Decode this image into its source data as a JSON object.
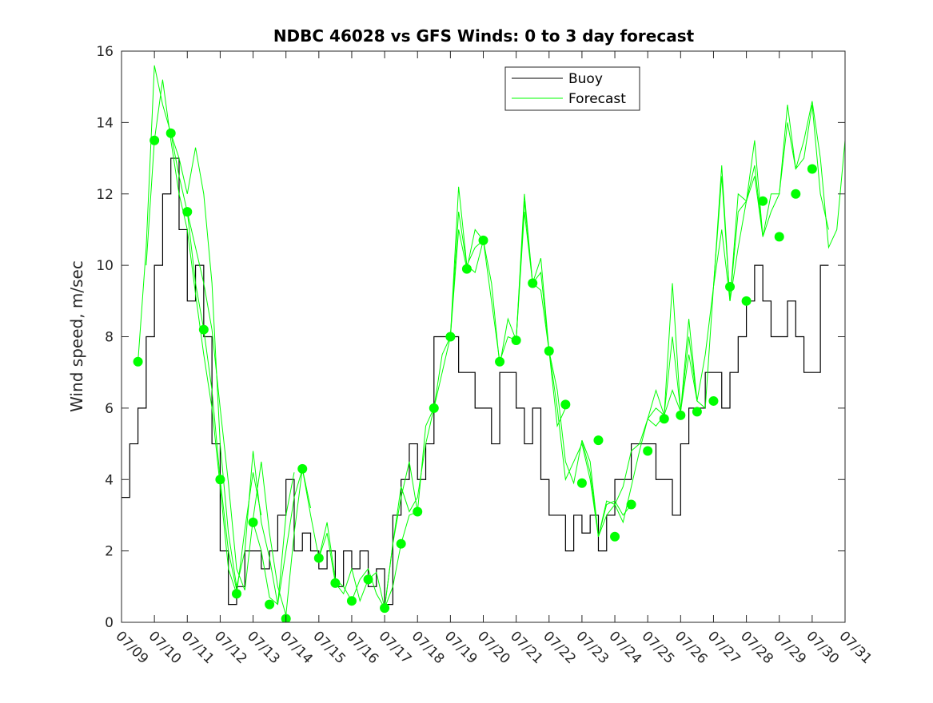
{
  "chart_data": {
    "type": "line",
    "title": "NDBC 46028 vs GFS Winds: 0 to 3 day forecast",
    "xlabel": "",
    "ylabel": "Wind speed, m/sec",
    "xlim": [
      9,
      31
    ],
    "ylim": [
      0,
      16
    ],
    "x_unit": "day of July",
    "x_ticks": [
      9,
      10,
      11,
      12,
      13,
      14,
      15,
      16,
      17,
      18,
      19,
      20,
      21,
      22,
      23,
      24,
      25,
      26,
      27,
      28,
      29,
      30,
      31
    ],
    "x_tick_labels": [
      "07/09",
      "07/10",
      "07/11",
      "07/12",
      "07/13",
      "07/14",
      "07/15",
      "07/16",
      "07/17",
      "07/18",
      "07/19",
      "07/20",
      "07/21",
      "07/22",
      "07/23",
      "07/24",
      "07/25",
      "07/26",
      "07/27",
      "07/28",
      "07/29",
      "07/30",
      "07/31"
    ],
    "y_ticks": [
      0,
      2,
      4,
      6,
      8,
      10,
      12,
      14,
      16
    ],
    "y_tick_labels": [
      "0",
      "2",
      "4",
      "6",
      "8",
      "10",
      "12",
      "14",
      "16"
    ],
    "grid": false,
    "legend": {
      "position": "top-right",
      "entries": [
        "Buoy",
        "Forecast"
      ]
    },
    "series": [
      {
        "name": "Buoy",
        "color": "#000000",
        "style": "step",
        "x": [
          9.0,
          9.25,
          9.5,
          9.75,
          10.0,
          10.25,
          10.5,
          10.75,
          11.0,
          11.25,
          11.5,
          11.75,
          12.0,
          12.25,
          12.5,
          12.75,
          13.0,
          13.25,
          13.5,
          13.75,
          14.0,
          14.25,
          14.5,
          14.75,
          15.0,
          15.25,
          15.5,
          15.75,
          16.0,
          16.25,
          16.5,
          16.75,
          17.0,
          17.25,
          17.5,
          17.75,
          18.0,
          18.25,
          18.5,
          18.75,
          19.0,
          19.25,
          19.5,
          19.75,
          20.0,
          20.25,
          20.5,
          20.75,
          21.0,
          21.25,
          21.5,
          21.75,
          22.0,
          22.25,
          22.5,
          22.75,
          23.0,
          23.25,
          23.5,
          23.75,
          24.0,
          24.25,
          24.5,
          24.75,
          25.0,
          25.25,
          25.5,
          25.75,
          26.0,
          26.25,
          26.5,
          26.75,
          27.0,
          27.25,
          27.5,
          27.75,
          28.0,
          28.25,
          28.5,
          28.75,
          29.0,
          29.25,
          29.5,
          29.75,
          30.0,
          30.25
        ],
        "values": [
          3.5,
          5,
          6,
          8,
          10,
          12,
          13,
          11,
          9,
          10,
          8,
          5,
          2,
          0.5,
          1,
          2,
          2,
          1.5,
          2,
          3,
          4,
          2,
          2.5,
          2,
          1.5,
          2,
          1,
          2,
          1.5,
          2,
          1,
          1.5,
          0.5,
          3,
          4,
          5,
          4,
          5,
          8,
          8,
          8,
          7,
          7,
          6,
          6,
          5,
          7,
          7,
          6,
          5,
          6,
          4,
          3,
          3,
          2,
          3,
          2.5,
          3,
          2,
          3,
          4,
          4,
          5,
          5,
          5,
          4,
          4,
          3,
          5,
          6,
          6,
          7,
          7,
          6,
          7,
          8,
          9,
          10,
          9,
          8,
          8,
          9,
          8,
          7,
          7,
          10
        ]
      },
      {
        "name": "Forecast",
        "color": "#00ff00",
        "x": [
          9.0,
          9.25,
          9.5,
          9.75,
          10.0,
          10.25,
          10.5,
          10.75,
          11.0,
          11.25,
          11.5,
          11.75,
          12.0,
          12.25,
          12.5,
          12.75,
          13.0,
          13.25,
          13.5,
          13.75,
          14.0,
          14.25,
          14.5,
          14.75,
          15.0,
          15.25,
          15.5,
          15.75,
          16.0,
          16.25,
          16.5,
          16.75,
          17.0,
          17.25,
          17.5,
          17.75,
          18.0,
          18.25,
          18.5,
          18.75,
          19.0,
          19.25,
          19.5,
          19.75,
          20.0,
          20.25,
          20.5,
          20.75,
          21.0,
          21.25,
          21.5,
          21.75,
          22.0,
          22.25,
          22.5,
          22.75,
          23.0,
          23.25,
          23.5,
          23.75,
          24.0,
          24.25,
          24.5,
          24.75,
          25.0,
          25.25,
          25.5,
          25.75,
          26.0,
          26.25,
          26.5,
          26.75,
          27.0,
          27.25,
          27.5,
          27.75,
          28.0,
          28.25,
          28.5,
          28.75,
          29.0,
          29.25,
          29.5,
          29.75,
          30.0,
          30.25,
          30.5,
          30.75,
          31.0
        ],
        "values": [
          null,
          null,
          null,
          null,
          null,
          null,
          null,
          null,
          null,
          null,
          null,
          null,
          null,
          null,
          null,
          null,
          null,
          null,
          null,
          null,
          null,
          null,
          null,
          null,
          null,
          null,
          null,
          null,
          null,
          null,
          null,
          null,
          null,
          null,
          null,
          null,
          null,
          null,
          null,
          null,
          null,
          null,
          null,
          null,
          null,
          null,
          null,
          null,
          null,
          null,
          null,
          null,
          null,
          null,
          null,
          null,
          null,
          null,
          null,
          null,
          null,
          null,
          null,
          null,
          null,
          null,
          null,
          null,
          null,
          null,
          null,
          null,
          null,
          null,
          null,
          null,
          null,
          null,
          null,
          null,
          null,
          null,
          null,
          null,
          null,
          null,
          null,
          null,
          null
        ]
      }
    ],
    "forecast_runs": [
      {
        "x": [
          9.5,
          9.75,
          10.0,
          10.25,
          10.5,
          10.75,
          11.0,
          11.25,
          11.5,
          11.75,
          12.0,
          12.25,
          12.5
        ],
        "values": [
          7.3,
          10.5,
          15.6,
          14.5,
          13.7,
          12.5,
          11.5,
          9.5,
          8.2,
          6.5,
          4.0,
          2.0,
          0.9
        ]
      },
      {
        "x": [
          9.75,
          10.0,
          10.25,
          10.5,
          10.75,
          11.0,
          11.25,
          11.5,
          11.75,
          12.0,
          12.25,
          12.5,
          12.75,
          13.0,
          13.25
        ],
        "values": [
          10.0,
          13.5,
          15.2,
          13.5,
          12.0,
          11.0,
          9.2,
          7.5,
          6.0,
          3.8,
          1.5,
          0.8,
          2.6,
          4.2,
          3.0
        ]
      },
      {
        "x": [
          10.5,
          10.75,
          11.0,
          11.25,
          11.5,
          11.75,
          12.0,
          12.25,
          12.5,
          12.75,
          13.0,
          13.25,
          13.5,
          13.75,
          14.0,
          14.25
        ],
        "values": [
          13.7,
          13.0,
          12.0,
          13.3,
          12.0,
          9.5,
          5.0,
          2.5,
          1.0,
          2.0,
          4.8,
          2.8,
          1.8,
          0.5,
          3.0,
          4.2
        ]
      },
      {
        "x": [
          11.0,
          11.25,
          11.5,
          11.75,
          12.0,
          12.25,
          12.5,
          12.75,
          13.0,
          13.25,
          13.5,
          13.75,
          14.0,
          14.25,
          14.5,
          14.75
        ],
        "values": [
          11.5,
          10.5,
          9.5,
          8.2,
          6.0,
          3.9,
          1.5,
          0.9,
          2.9,
          4.5,
          2.5,
          1.0,
          0.2,
          2.5,
          4.3,
          3.2
        ]
      },
      {
        "x": [
          13.0,
          13.25,
          13.5,
          13.75,
          14.0,
          14.25,
          14.5,
          14.75,
          15.0,
          15.25,
          15.5,
          15.75,
          16.0,
          16.25,
          16.5,
          16.75,
          17.0,
          17.25,
          17.5,
          17.75,
          18.0
        ],
        "values": [
          2.8,
          2.0,
          0.7,
          0.5,
          2.0,
          3.5,
          4.3,
          3.0,
          1.8,
          2.5,
          1.1,
          0.8,
          1.5,
          0.6,
          1.2,
          1.4,
          0.4,
          1.0,
          2.2,
          3.0,
          3.1
        ]
      },
      {
        "x": [
          15.0,
          15.25,
          15.5,
          15.75,
          16.0,
          16.25,
          16.5,
          16.75,
          17.0,
          17.25,
          17.5,
          17.75,
          18.0,
          18.25,
          18.5,
          18.75,
          19.0,
          19.25,
          19.5,
          19.75,
          20.0
        ],
        "values": [
          1.8,
          2.8,
          1.2,
          1.0,
          0.6,
          1.2,
          1.5,
          0.8,
          0.4,
          2.2,
          3.8,
          3.1,
          3.5,
          5.0,
          6.0,
          7.5,
          8.0,
          11.5,
          10.0,
          10.5,
          10.7
        ]
      },
      {
        "x": [
          17.0,
          17.25,
          17.5,
          17.75,
          18.0,
          18.25,
          18.5,
          18.75,
          19.0,
          19.25,
          19.5,
          19.75,
          20.0,
          20.25,
          20.5,
          20.75,
          21.0,
          21.25,
          21.5,
          21.75,
          22.0,
          22.25,
          22.5
        ],
        "values": [
          0.4,
          2.2,
          3.5,
          4.5,
          3.1,
          5.5,
          6.0,
          7.0,
          8.0,
          12.2,
          10.0,
          9.8,
          10.7,
          9.0,
          7.3,
          8.0,
          7.9,
          12.0,
          9.5,
          9.3,
          7.6,
          5.5,
          6.0
        ]
      },
      {
        "x": [
          19.0,
          19.25,
          19.5,
          19.75,
          20.0,
          20.25,
          20.5,
          20.75,
          21.0,
          21.25,
          21.5,
          21.75,
          22.0,
          22.25,
          22.5,
          22.75,
          23.0,
          23.25,
          23.5,
          23.75,
          24.0,
          24.25,
          24.5
        ],
        "values": [
          8.0,
          11.0,
          9.9,
          11.0,
          10.7,
          9.5,
          7.2,
          8.5,
          7.9,
          11.5,
          9.5,
          10.2,
          7.6,
          6.0,
          4.0,
          4.5,
          5.0,
          4.0,
          2.4,
          3.3,
          3.4,
          3.0,
          3.3
        ]
      },
      {
        "x": [
          21.0,
          21.25,
          21.5,
          21.75,
          22.0,
          22.25,
          22.5,
          22.75,
          23.0,
          23.25,
          23.5,
          23.75,
          24.0,
          24.25,
          24.5,
          24.75,
          25.0,
          25.25,
          25.5,
          25.75,
          26.0,
          26.25,
          26.5
        ],
        "values": [
          7.9,
          11.8,
          9.5,
          9.8,
          7.6,
          6.5,
          4.5,
          3.9,
          5.1,
          4.2,
          2.4,
          3.4,
          3.3,
          2.8,
          3.8,
          4.8,
          5.7,
          5.5,
          5.8,
          6.5,
          5.9,
          8.0,
          6.2
        ]
      },
      {
        "x": [
          23.0,
          23.25,
          23.5,
          23.75,
          24.0,
          24.25,
          24.5,
          24.75,
          25.0,
          25.25,
          25.5,
          25.75,
          26.0,
          26.25,
          26.5,
          26.75,
          27.0,
          27.25,
          27.5,
          27.75,
          28.0,
          28.25,
          28.5
        ],
        "values": [
          5.1,
          4.5,
          2.4,
          3.0,
          3.3,
          3.8,
          4.8,
          5.0,
          5.7,
          6.5,
          5.8,
          8.0,
          5.9,
          7.5,
          6.2,
          6.0,
          9.4,
          12.5,
          9.0,
          10.5,
          11.8,
          12.5,
          10.8
        ]
      },
      {
        "x": [
          25.0,
          25.25,
          25.5,
          25.75,
          26.0,
          26.25,
          26.5,
          26.75,
          27.0,
          27.25,
          27.5,
          27.75,
          28.0,
          28.25,
          28.5,
          28.75,
          29.0,
          29.25,
          29.5,
          29.75,
          30.0,
          30.25,
          30.5
        ],
        "values": [
          5.7,
          6.0,
          5.8,
          9.5,
          5.9,
          8.5,
          6.2,
          7.5,
          9.4,
          11.0,
          9.0,
          12.0,
          11.8,
          13.5,
          10.8,
          11.5,
          12.0,
          14.5,
          12.7,
          13.0,
          14.5,
          12.0,
          11.0
        ]
      },
      {
        "x": [
          27.0,
          27.25,
          27.5,
          27.75,
          28.0,
          28.25,
          28.5,
          28.75,
          29.0,
          29.25,
          29.5,
          29.75,
          30.0,
          30.25,
          30.5,
          30.75,
          31.0
        ],
        "values": [
          9.4,
          12.8,
          9.0,
          11.5,
          11.8,
          12.8,
          10.8,
          12.0,
          12.0,
          14.0,
          12.7,
          13.5,
          14.6,
          13.0,
          10.5,
          11.0,
          13.5
        ]
      }
    ],
    "markers": {
      "color": "#00ff00",
      "x": [
        9.5,
        10.0,
        10.5,
        11.0,
        11.5,
        12.0,
        12.5,
        13.0,
        13.5,
        14.0,
        14.5,
        15.0,
        15.5,
        16.0,
        16.5,
        17.0,
        17.5,
        18.0,
        18.5,
        19.0,
        19.5,
        20.0,
        20.5,
        21.0,
        21.5,
        22.0,
        22.5,
        23.0,
        23.5,
        24.0,
        24.5,
        25.0,
        25.5,
        26.0,
        26.5,
        27.0,
        27.5,
        28.0,
        28.5,
        29.0,
        29.5,
        30.0
      ],
      "values": [
        7.3,
        13.5,
        13.7,
        11.5,
        8.2,
        4.0,
        0.8,
        2.8,
        0.5,
        0.1,
        4.3,
        1.8,
        1.1,
        0.6,
        1.2,
        0.4,
        2.2,
        3.1,
        6.0,
        8.0,
        9.9,
        10.7,
        7.3,
        7.9,
        9.5,
        7.6,
        6.1,
        3.9,
        5.1,
        2.4,
        3.3,
        4.8,
        5.7,
        5.8,
        5.9,
        6.2,
        9.4,
        9.0,
        11.8,
        10.8,
        12.0,
        12.7
      ]
    }
  }
}
